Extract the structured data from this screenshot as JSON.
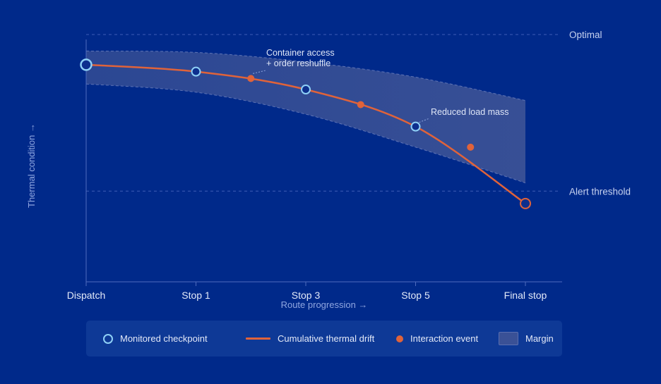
{
  "chart_data": {
    "type": "line",
    "xlabel": "Route progression →",
    "ylabel": "Thermal condition →",
    "categories": [
      "Dispatch",
      "Stop 1",
      "Stop 3",
      "Stop 5",
      "Final stop"
    ],
    "xlim": [
      0,
      8
    ],
    "ylim": [
      0,
      100
    ],
    "reference_lines": [
      {
        "label": "Optimal",
        "y": 90
      },
      {
        "label": "Alert threshold",
        "y": 33
      }
    ],
    "series": [
      {
        "name": "Cumulative thermal drift",
        "x": [
          0,
          2,
          4,
          6,
          8
        ],
        "y": [
          79,
          76.5,
          70,
          56.5,
          28.5
        ]
      },
      {
        "name": "Monitored checkpoint",
        "x": [
          0,
          2,
          4,
          6,
          8
        ],
        "y": [
          79,
          76.5,
          70,
          56.5,
          28.5
        ]
      },
      {
        "name": "Interaction event",
        "x": [
          3,
          5,
          7
        ],
        "y": [
          74,
          64.5,
          49
        ]
      },
      {
        "name": "Margin",
        "x": [
          0,
          2,
          4,
          6,
          8
        ],
        "upper": [
          84,
          83.5,
          80,
          74.5,
          66
        ],
        "lower": [
          72,
          69,
          61,
          49,
          36
        ]
      }
    ],
    "annotations": [
      {
        "lines": [
          "Container access",
          "+ order reshuffle"
        ],
        "x": 3,
        "y": 74
      },
      {
        "lines": [
          "Reduced load mass"
        ],
        "x": 6,
        "y": 56.5
      }
    ],
    "legend": {
      "position": "bottom",
      "items": [
        "Monitored checkpoint",
        "Cumulative thermal drift",
        "Interaction event",
        "Margin"
      ]
    },
    "grid": false
  },
  "colors": {
    "background": "#00298a",
    "drift_line": "#e0633a",
    "checkpoint_stroke": "#8fd0f6",
    "final_checkpoint_stroke": "#e0633a",
    "margin_fill": "#3a5196",
    "axis": "#4f6bbd"
  }
}
